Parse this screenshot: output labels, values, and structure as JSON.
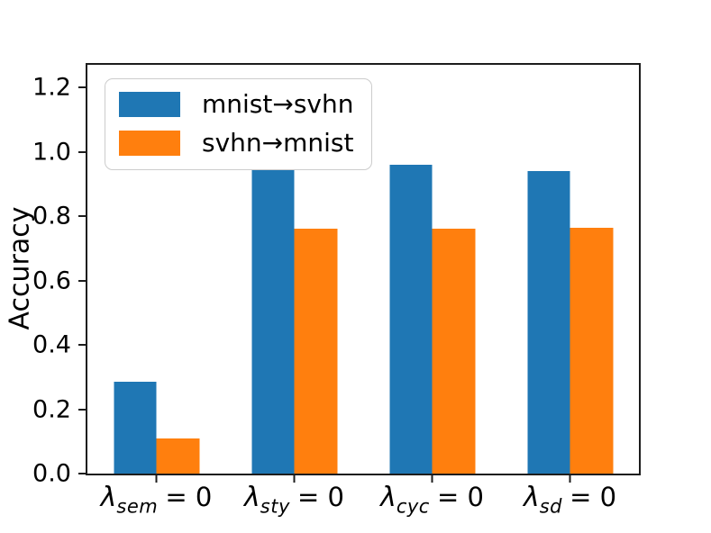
{
  "figure": {
    "background": "#ffffff"
  },
  "chart_data": {
    "type": "bar",
    "title": "",
    "xlabel": "",
    "ylabel": "Accuracy",
    "categories": [
      "λ_sem = 0",
      "λ_sty = 0",
      "λ_cyc = 0",
      "λ_sd = 0"
    ],
    "category_parts": [
      {
        "symbol": "λ",
        "subscript": "sem",
        "suffix": "= 0"
      },
      {
        "symbol": "λ",
        "subscript": "sty",
        "suffix": "= 0"
      },
      {
        "symbol": "λ",
        "subscript": "cyc",
        "suffix": "= 0"
      },
      {
        "symbol": "λ",
        "subscript": "sd",
        "suffix": "= 0"
      }
    ],
    "series": [
      {
        "name": "mnist→svhn",
        "color": "#1f77b4",
        "values": [
          0.285,
          0.945,
          0.96,
          0.94
        ]
      },
      {
        "name": "svhn→mnist",
        "color": "#ff7f0e",
        "values": [
          0.11,
          0.76,
          0.76,
          0.765
        ]
      }
    ],
    "ylim": [
      0,
      1.27
    ],
    "ytick_values": [
      0,
      0.2,
      0.4,
      0.6,
      0.8,
      1.0,
      1.2
    ],
    "ytick_labels": [
      "0.0",
      "0.2",
      "0.4",
      "0.6",
      "0.8",
      "1.0",
      "1.2"
    ],
    "legend": {
      "position": "upper left",
      "entries": [
        "mnist→svhn",
        "svhn→mnist"
      ]
    },
    "grid": false,
    "bar_width_fraction": 0.31,
    "axis_color": "#1c1c1c"
  }
}
